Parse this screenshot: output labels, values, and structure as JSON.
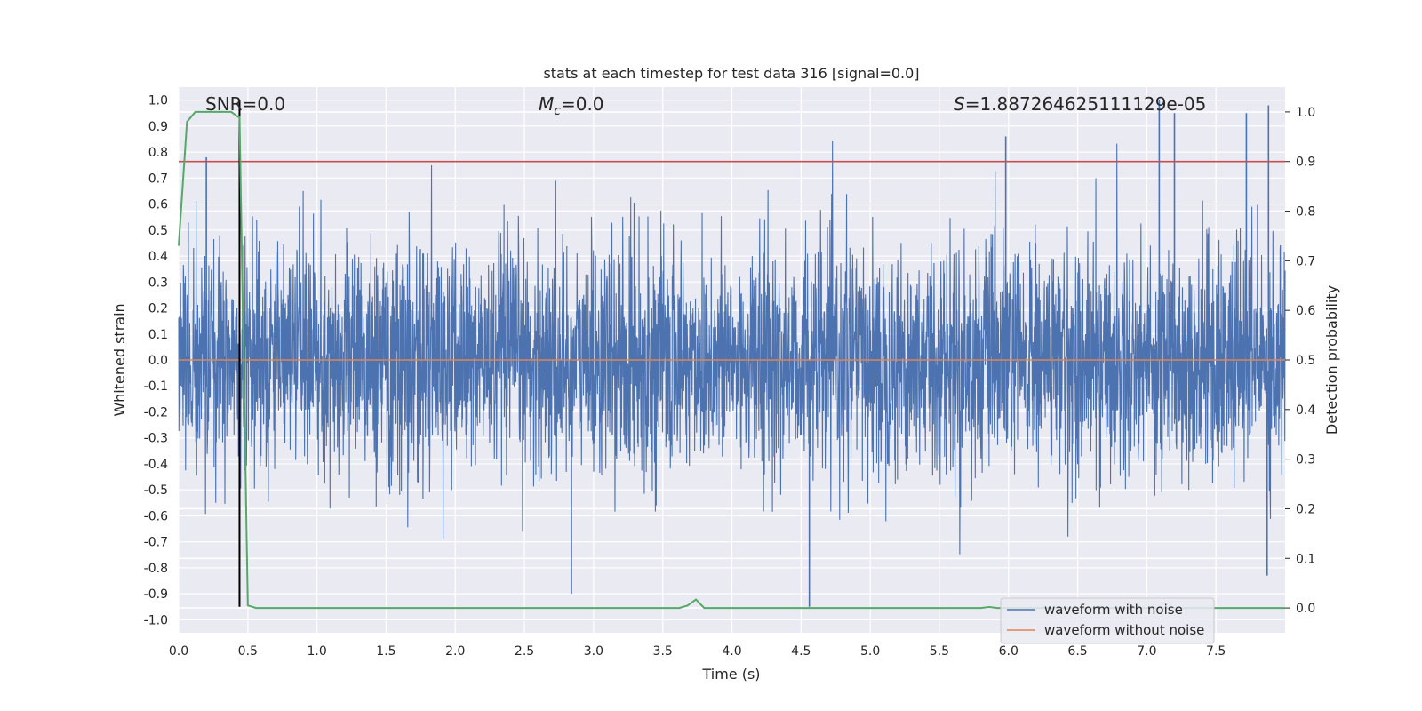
{
  "chart_data": {
    "type": "line",
    "title": "stats at each timestep for test data 316 [signal=0.0]",
    "xlabel": "Time (s)",
    "ylabel_left": "Whitened strain",
    "ylabel_right": "Detection probability",
    "xlim": [
      0.0,
      8.0
    ],
    "ylim_left": [
      -1.05,
      1.05
    ],
    "ylim_right": [
      -0.05,
      1.05
    ],
    "x_ticks": [
      "0.0",
      "0.5",
      "1.0",
      "1.5",
      "2.0",
      "2.5",
      "3.0",
      "3.5",
      "4.0",
      "4.5",
      "5.0",
      "5.5",
      "6.0",
      "6.5",
      "7.0",
      "7.5"
    ],
    "y_left_ticks": [
      "1.0",
      "0.9",
      "0.8",
      "0.7",
      "0.6",
      "0.5",
      "0.4",
      "0.3",
      "0.2",
      "0.1",
      "0.0",
      "-0.1",
      "-0.2",
      "-0.3",
      "-0.4",
      "-0.5",
      "-0.6",
      "-0.7",
      "-0.8",
      "-0.9",
      "-1.0"
    ],
    "y_right_ticks": [
      "1.0",
      "0.9",
      "0.8",
      "0.7",
      "0.6",
      "0.5",
      "0.4",
      "0.3",
      "0.2",
      "0.1",
      "0.0"
    ],
    "grid": true,
    "annotations": {
      "snr": "SNR=0.0",
      "mc_symbol": "M",
      "mc_subscript": "c",
      "mc_value": "=0.0",
      "s_symbol": "S",
      "s_value": "=1.887264625111129e-05"
    },
    "legend": {
      "placement": "lower-right",
      "entries": [
        "waveform with noise",
        "waveform without noise"
      ]
    },
    "series": [
      {
        "name": "waveform with noise",
        "axis": "left",
        "color": "#4c72b0",
        "kind": "noise",
        "x_range": [
          0.0,
          8.0
        ],
        "typical_amplitude": 0.4,
        "max": 1.0,
        "min": -0.95,
        "notable_peaks": [
          [
            7.09,
            1.0
          ],
          [
            7.88,
            0.98
          ],
          [
            7.72,
            0.95
          ],
          [
            5.98,
            0.86
          ],
          [
            7.2,
            0.95
          ],
          [
            0.2,
            0.78
          ],
          [
            2.84,
            -0.9
          ],
          [
            4.56,
            -0.95
          ],
          [
            7.87,
            -0.83
          ]
        ]
      },
      {
        "name": "waveform without noise",
        "axis": "left",
        "color": "#dd8452",
        "x": [
          0.0,
          8.0
        ],
        "y": [
          0.0,
          0.0
        ]
      },
      {
        "name": "detection probability",
        "axis": "right",
        "color": "#55a868",
        "x": [
          0.0,
          0.06,
          0.12,
          0.2,
          0.3,
          0.38,
          0.43,
          0.44,
          0.5,
          0.56,
          1.0,
          2.0,
          3.0,
          3.62,
          3.68,
          3.74,
          3.8,
          3.86,
          5.0,
          5.8,
          5.86,
          5.92,
          6.5,
          7.0,
          7.5,
          8.0
        ],
        "y": [
          0.73,
          0.98,
          1.0,
          1.0,
          1.0,
          1.0,
          0.99,
          0.99,
          0.005,
          0.0,
          0.0,
          0.0,
          0.0,
          0.0,
          0.005,
          0.017,
          0.0,
          0.0,
          0.0,
          0.0,
          0.002,
          0.0,
          0.0,
          0.0,
          0.0,
          0.0
        ]
      }
    ],
    "threshold_line": {
      "name": "detection threshold",
      "axis": "right",
      "color": "#c44e52",
      "value": 0.9
    },
    "marker_line": {
      "name": "detection time marker",
      "color": "#000000",
      "x": 0.44,
      "y_range": [
        -0.95,
        1.0
      ]
    }
  }
}
